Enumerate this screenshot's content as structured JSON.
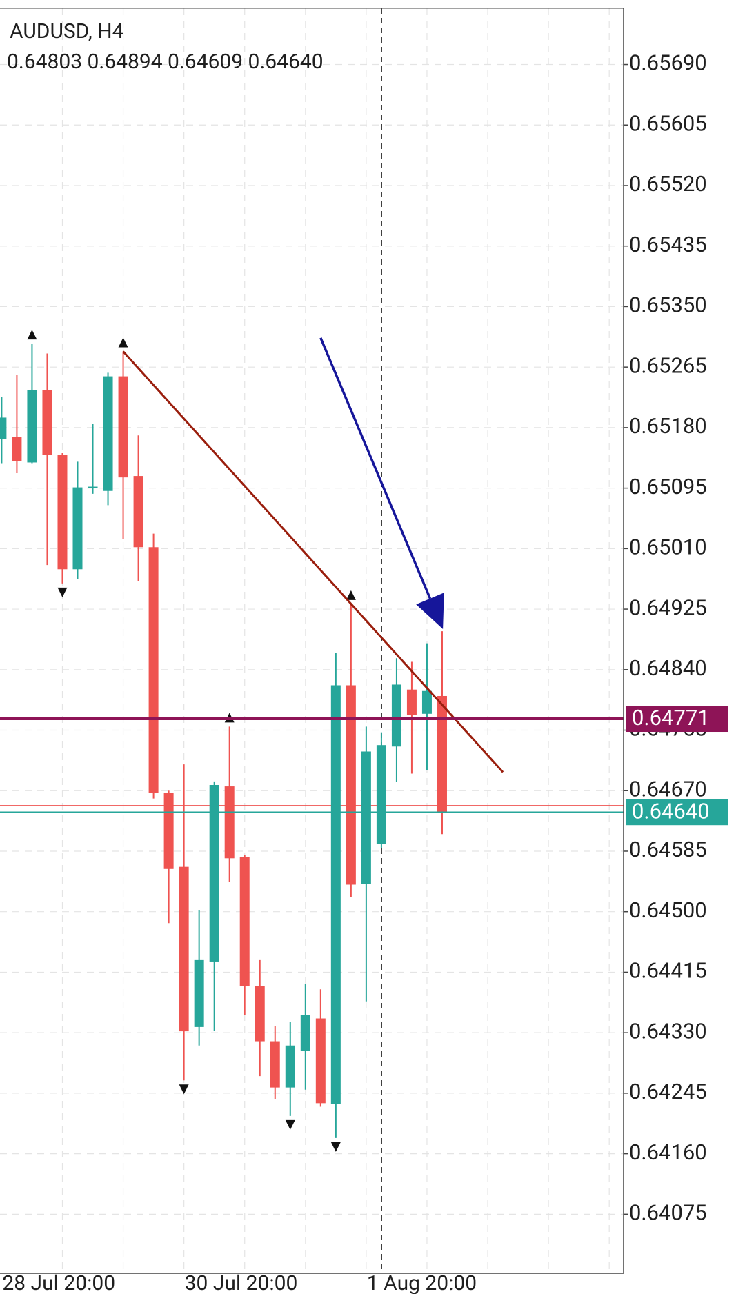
{
  "chart_data": {
    "type": "candlestick",
    "title": "AUDUSD, H4",
    "subtitle": "0.64803 0.64894 0.64609 0.64640",
    "categories": [
      "28 Jul 20:00",
      null,
      null,
      null,
      null,
      null,
      null,
      null,
      null,
      null,
      null,
      null,
      "30 Jul 20:00",
      null,
      null,
      null,
      null,
      null,
      null,
      null,
      null,
      null,
      null,
      null,
      "1 Aug 20:00",
      null,
      null,
      null,
      null,
      null
    ],
    "ohlc": [
      [
        0.65164,
        0.65223,
        0.6513,
        0.65194
      ],
      [
        0.65167,
        0.65254,
        0.65116,
        0.65133
      ],
      [
        0.65131,
        0.65298,
        0.6513,
        0.65233
      ],
      [
        0.65233,
        0.65284,
        0.64987,
        0.65142
      ],
      [
        0.65142,
        0.65144,
        0.64961,
        0.64981
      ],
      [
        0.64981,
        0.65132,
        0.64967,
        0.65096
      ],
      [
        0.65096,
        0.65185,
        0.65087,
        0.65097
      ],
      [
        0.65091,
        0.65257,
        0.65071,
        0.65252
      ],
      [
        0.65252,
        0.65287,
        0.65023,
        0.6511
      ],
      [
        0.65112,
        0.65169,
        0.64964,
        0.65012
      ],
      [
        0.65012,
        0.65031,
        0.64659,
        0.64667
      ],
      [
        0.64667,
        0.6467,
        0.64484,
        0.6456
      ],
      [
        0.64563,
        0.64707,
        0.64263,
        0.64332
      ],
      [
        0.64338,
        0.64502,
        0.64312,
        0.64432
      ],
      [
        0.6443,
        0.64683,
        0.64333,
        0.64678
      ],
      [
        0.64676,
        0.6476,
        0.64542,
        0.64575
      ],
      [
        0.64577,
        0.6458,
        0.64355,
        0.64396
      ],
      [
        0.64396,
        0.64432,
        0.64269,
        0.64318
      ],
      [
        0.64318,
        0.64339,
        0.64237,
        0.64253
      ],
      [
        0.64253,
        0.64345,
        0.64213,
        0.64312
      ],
      [
        0.64304,
        0.64399,
        0.6425,
        0.64355
      ],
      [
        0.6435,
        0.64391,
        0.64226,
        0.64231
      ],
      [
        0.6423,
        0.64864,
        0.64182,
        0.64818
      ],
      [
        0.64818,
        0.64932,
        0.64521,
        0.64538
      ],
      [
        0.64539,
        0.6476,
        0.64374,
        0.64725
      ],
      [
        0.64595,
        0.64752,
        0.64589,
        0.64734
      ],
      [
        0.64732,
        0.64856,
        0.64682,
        0.64819
      ],
      [
        0.64812,
        0.64851,
        0.64694,
        0.64776
      ],
      [
        0.64778,
        0.64877,
        0.64699,
        0.6481
      ],
      [
        0.64803,
        0.64894,
        0.64609,
        0.6464
      ]
    ],
    "up_color": "#26a69a",
    "down_color": "#ef5350",
    "fractals_up": [
      2,
      8,
      15,
      23
    ],
    "fractals_down": [
      4,
      12,
      19,
      22
    ],
    "separator_index": 25,
    "ylim": [
      0.63992,
      0.65769
    ],
    "yticks": [
      {
        "value": 0.6569,
        "label": "0.65690"
      },
      0.65605,
      {
        "value": 0.6552,
        "label": "0.65520"
      },
      0.65435,
      {
        "value": 0.6535,
        "label": "0.65350"
      },
      0.65265,
      {
        "value": 0.6518,
        "label": "0.65180"
      },
      0.65095,
      {
        "value": 0.6501,
        "label": "0.65010"
      },
      0.64925,
      {
        "value": 0.6484,
        "label": "0.64840"
      },
      0.64755,
      {
        "value": 0.6467,
        "label": "0.64670"
      },
      0.64585,
      {
        "value": 0.645,
        "label": "0.64500"
      },
      0.64415,
      {
        "value": 0.6433,
        "label": "0.64330"
      },
      0.64245,
      {
        "value": 0.6416,
        "label": "0.64160"
      },
      0.64075
    ],
    "grid": true,
    "ask_line": {
      "value": 0.64649,
      "color": "#ef5350"
    },
    "price_lines": [
      {
        "value": 0.64771,
        "label": "0.64771",
        "color": "#8e1457"
      },
      {
        "value": 0.6464,
        "label": "0.64640",
        "color": "#26a69a"
      }
    ],
    "trendlines": [
      {
        "color": "#9a1e0d",
        "x": [
          8,
          33
        ],
        "y": [
          0.65287,
          0.64696
        ],
        "arrow": false
      },
      {
        "color": "#16169a",
        "x": [
          21,
          29.05
        ],
        "y": [
          0.65306,
          0.64897
        ],
        "arrow": true
      }
    ]
  }
}
